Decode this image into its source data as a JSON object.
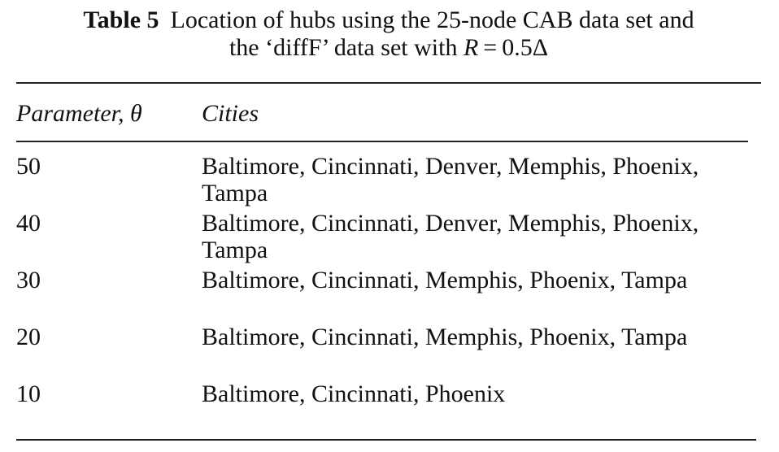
{
  "caption": {
    "label": "Table 5",
    "line1": "Location of hubs using the 25-node CAB data set and",
    "line2_prefix": "the ‘diffF’ data set with ",
    "line2_var": "R",
    "line2_suffix": " = 0.5Δ"
  },
  "table": {
    "headers": {
      "parameter": "Parameter, θ",
      "cities": "Cities"
    },
    "rows": [
      {
        "parameter": "50",
        "cities": "Baltimore, Cincinnati, Denver, Memphis, Phoenix, Tampa"
      },
      {
        "parameter": "40",
        "cities": "Baltimore, Cincinnati, Denver, Memphis, Phoenix, Tampa"
      },
      {
        "parameter": "30",
        "cities": "Baltimore, Cincinnati, Memphis, Phoenix, Tampa"
      },
      {
        "parameter": "20",
        "cities": "Baltimore, Cincinnati, Memphis, Phoenix, Tampa"
      },
      {
        "parameter": "10",
        "cities": "Baltimore, Cincinnati, Phoenix"
      }
    ]
  }
}
